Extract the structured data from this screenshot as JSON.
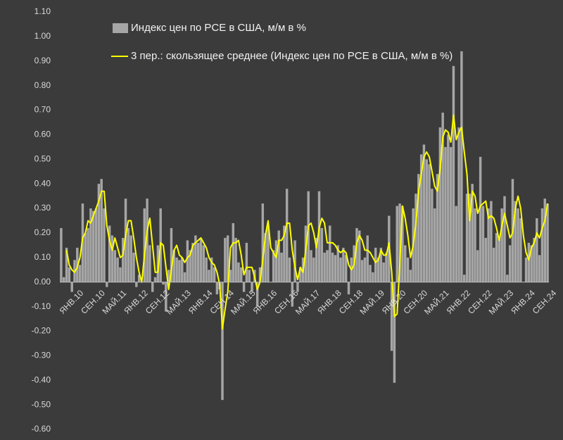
{
  "chart_data": {
    "type": "bar",
    "categories": [
      "ЯНВ.10",
      null,
      null,
      null,
      null,
      null,
      null,
      null,
      "СЕН.10",
      null,
      null,
      null,
      null,
      null,
      null,
      null,
      "МАЙ.11",
      null,
      null,
      null,
      null,
      null,
      null,
      null,
      "ЯНВ.12",
      null,
      null,
      null,
      null,
      null,
      null,
      null,
      "СЕН.12",
      null,
      null,
      null,
      null,
      null,
      null,
      null,
      "МАЙ.13",
      null,
      null,
      null,
      null,
      null,
      null,
      null,
      "ЯНВ.14",
      null,
      null,
      null,
      null,
      null,
      null,
      null,
      "СЕН.14",
      null,
      null,
      null,
      null,
      null,
      null,
      null,
      "МАЙ.15",
      null,
      null,
      null,
      null,
      null,
      null,
      null,
      "ЯНВ.16",
      null,
      null,
      null,
      null,
      null,
      null,
      null,
      "СЕН.16",
      null,
      null,
      null,
      null,
      null,
      null,
      null,
      "МАЙ.17",
      null,
      null,
      null,
      null,
      null,
      null,
      null,
      "ЯНВ.18",
      null,
      null,
      null,
      null,
      null,
      null,
      null,
      "СЕН.18",
      null,
      null,
      null,
      null,
      null,
      null,
      null,
      "МАЙ.19",
      null,
      null,
      null,
      null,
      null,
      null,
      null,
      "ЯНВ.20",
      null,
      null,
      null,
      null,
      null,
      null,
      null,
      "СЕН.20",
      null,
      null,
      null,
      null,
      null,
      null,
      null,
      "МАЙ.21",
      null,
      null,
      null,
      null,
      null,
      null,
      null,
      "ЯНВ.22",
      null,
      null,
      null,
      null,
      null,
      null,
      null,
      "СЕН.22",
      null,
      null,
      null,
      null,
      null,
      null,
      null,
      "МАЙ.23",
      null,
      null,
      null,
      null,
      null,
      null,
      null,
      "ЯНВ.24",
      null,
      null,
      null,
      null,
      null,
      null,
      null,
      "СЕН.24",
      null,
      null,
      null,
      null,
      null
    ],
    "series": [
      {
        "name": "Индекс цен по PCE в США, м/м в %",
        "type": "bar",
        "color": "#a6a6a6",
        "values": [
          0.22,
          0.02,
          0.14,
          0.06,
          -0.04,
          0.09,
          0.14,
          0.07,
          0.32,
          0.2,
          0.22,
          0.3,
          0.29,
          0.3,
          0.4,
          0.42,
          0.3,
          -0.02,
          0.23,
          0.19,
          0.13,
          0.1,
          0.06,
          0.18,
          0.34,
          0.22,
          0.19,
          0.12,
          -0.02,
          0.03,
          0.0,
          0.3,
          0.34,
          0.15,
          -0.04,
          0.02,
          0.15,
          0.3,
          -0.01,
          -0.12,
          0.05,
          0.22,
          0.13,
          0.1,
          0.09,
          0.1,
          0.04,
          0.17,
          0.13,
          0.16,
          0.19,
          0.16,
          0.18,
          0.15,
          0.1,
          0.05,
          0.1,
          0.06,
          -0.05,
          -0.03,
          -0.48,
          0.18,
          0.19,
          0.05,
          0.24,
          0.18,
          0.08,
          0.06,
          -0.04,
          0.16,
          0.05,
          -0.04,
          0.05,
          -0.1,
          0.06,
          0.32,
          0.2,
          0.23,
          0.0,
          0.13,
          0.17,
          0.21,
          0.12,
          0.23,
          0.38,
          0.1,
          -0.1,
          0.17,
          -0.04,
          0.06,
          0.1,
          0.23,
          0.37,
          0.13,
          0.1,
          0.18,
          0.37,
          0.22,
          0.12,
          0.13,
          0.23,
          0.12,
          0.11,
          0.15,
          0.1,
          0.14,
          0.11,
          -0.05,
          0.1,
          0.15,
          0.22,
          0.21,
          0.09,
          0.1,
          0.19,
          0.07,
          0.04,
          0.14,
          0.1,
          0.14,
          0.08,
          0.12,
          0.27,
          -0.28,
          -0.41,
          0.31,
          0.32,
          0.31,
          0.15,
          0.1,
          0.05,
          0.3,
          0.36,
          0.44,
          0.52,
          0.56,
          0.5,
          0.48,
          0.38,
          0.3,
          0.44,
          0.63,
          0.69,
          0.55,
          0.6,
          0.55,
          0.88,
          0.31,
          0.63,
          0.94,
          0.03,
          0.36,
          0.36,
          0.4,
          0.3,
          0.13,
          0.51,
          0.31,
          0.18,
          0.3,
          0.33,
          0.14,
          0.2,
          0.18,
          0.3,
          0.35,
          0.03,
          0.15,
          0.42,
          0.33,
          0.3,
          0.26,
          0.0,
          0.1,
          0.16,
          0.15,
          0.18,
          0.26,
          0.11,
          0.3,
          0.34,
          0.32
        ]
      },
      {
        "name": "3 пер.: скользящее среднее (Индекс цен по PCE в США, м/м в %)",
        "type": "line",
        "color": "#ffff00",
        "values": [
          null,
          null,
          0.13,
          0.07,
          0.05,
          0.04,
          0.06,
          0.1,
          0.18,
          0.2,
          0.25,
          0.24,
          0.27,
          0.3,
          0.33,
          0.37,
          0.37,
          0.23,
          0.17,
          0.13,
          0.18,
          0.14,
          0.1,
          0.11,
          0.19,
          0.25,
          0.25,
          0.18,
          0.1,
          0.04,
          0.0,
          0.11,
          0.21,
          0.26,
          0.15,
          0.04,
          0.04,
          0.16,
          0.15,
          0.06,
          -0.03,
          0.05,
          0.13,
          0.15,
          0.11,
          0.1,
          0.08,
          0.1,
          0.11,
          0.15,
          0.16,
          0.17,
          0.18,
          0.16,
          0.14,
          0.1,
          0.08,
          0.07,
          0.04,
          -0.01,
          -0.19,
          -0.11,
          -0.04,
          0.14,
          0.16,
          0.16,
          0.17,
          0.11,
          0.03,
          0.06,
          0.06,
          0.06,
          0.02,
          -0.03,
          0.0,
          0.09,
          0.19,
          0.25,
          0.14,
          0.12,
          0.1,
          0.17,
          0.17,
          0.19,
          0.24,
          0.24,
          0.13,
          0.06,
          0.01,
          0.06,
          0.04,
          0.13,
          0.23,
          0.24,
          0.2,
          0.14,
          0.22,
          0.26,
          0.24,
          0.16,
          0.16,
          0.16,
          0.15,
          0.13,
          0.12,
          0.13,
          0.12,
          0.07,
          0.05,
          0.07,
          0.16,
          0.19,
          0.17,
          0.13,
          0.13,
          0.12,
          0.1,
          0.08,
          0.09,
          0.13,
          0.11,
          0.11,
          0.16,
          0.04,
          -0.14,
          -0.13,
          0.07,
          0.31,
          0.26,
          0.19,
          0.1,
          0.15,
          0.24,
          0.37,
          0.44,
          0.51,
          0.53,
          0.51,
          0.45,
          0.39,
          0.37,
          0.46,
          0.59,
          0.62,
          0.61,
          0.57,
          0.68,
          0.58,
          0.61,
          0.63,
          0.53,
          0.44,
          0.25,
          0.37,
          0.35,
          0.28,
          0.31,
          0.32,
          0.33,
          0.26,
          0.27,
          0.26,
          0.22,
          0.17,
          0.23,
          0.28,
          0.23,
          0.18,
          0.2,
          0.3,
          0.35,
          0.3,
          0.19,
          0.12,
          0.09,
          0.14,
          0.16,
          0.2,
          0.18,
          0.22,
          0.25,
          0.32
        ]
      }
    ],
    "ylim": [
      -0.6,
      1.1
    ],
    "yticks": [
      {
        "value": -0.6,
        "label": "-0.60"
      },
      {
        "value": -0.5,
        "label": "-0.50"
      },
      {
        "value": -0.4,
        "label": "-0.40"
      },
      {
        "value": -0.3,
        "label": "-0.30"
      },
      {
        "value": -0.2,
        "label": "-0.20"
      },
      {
        "value": -0.1,
        "label": "-0.10"
      },
      {
        "value": 0,
        "label": "0.00"
      },
      {
        "value": 0.1,
        "label": "0.10"
      },
      {
        "value": 0.2,
        "label": "0.20"
      },
      {
        "value": 0.3,
        "label": "0.30"
      },
      {
        "value": 0.4,
        "label": "0.40"
      },
      {
        "value": 0.5,
        "label": "0.50"
      },
      {
        "value": 0.6,
        "label": "0.60"
      },
      {
        "value": 0.7,
        "label": "0.70"
      },
      {
        "value": 0.8,
        "label": "0.80"
      },
      {
        "value": 0.9,
        "label": "0.90"
      },
      {
        "value": 1.0,
        "label": "1.00"
      },
      {
        "value": 1.1,
        "label": "1.10"
      }
    ],
    "grid": false
  }
}
